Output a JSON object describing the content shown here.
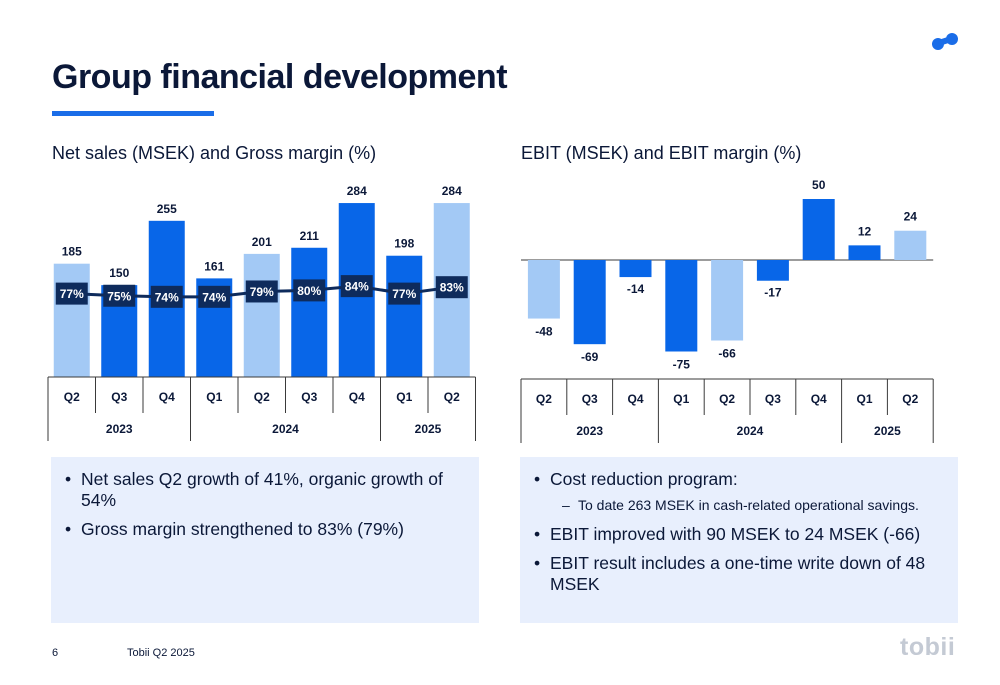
{
  "title": "Group financial development",
  "colors": {
    "navy": "#0b1838",
    "accent": "#1a6de8",
    "light_bar": "#a3c9f5",
    "dark_bar": "#0866e8",
    "margin_box": "#0e2b5c",
    "panel": "#e8effd",
    "brand_gray": "#c4cad4"
  },
  "logo_icon": "two-dots-icon",
  "chart_data": [
    {
      "type": "bar",
      "title": "Net sales (MSEK) and Gross margin (%)",
      "categories": [
        "Q2",
        "Q3",
        "Q4",
        "Q1",
        "Q2",
        "Q3",
        "Q4",
        "Q1",
        "Q2"
      ],
      "years": [
        {
          "label": "2023",
          "span": 3
        },
        {
          "label": "2024",
          "span": 4
        },
        {
          "label": "2025",
          "span": 2
        }
      ],
      "series": [
        {
          "values": [
            185,
            150,
            255,
            161,
            201,
            211,
            284,
            198,
            284
          ],
          "emphasis": [
            "light",
            "dark",
            "dark",
            "dark",
            "light",
            "dark",
            "dark",
            "dark",
            "light"
          ]
        },
        {
          "type": "line",
          "values": [
            77,
            75,
            74,
            74,
            79,
            80,
            84,
            77,
            83
          ],
          "labels": [
            "77%",
            "75%",
            "74%",
            "74%",
            "79%",
            "80%",
            "84%",
            "77%",
            "83%"
          ]
        }
      ],
      "value_labels": [
        "185",
        "150",
        "255",
        "161",
        "201",
        "211",
        "284",
        "198",
        "284"
      ],
      "ylim": [
        0,
        300
      ],
      "margin_ylim": [
        0,
        100
      ],
      "grid": false
    },
    {
      "type": "bar",
      "title": "EBIT (MSEK) and EBIT margin (%)",
      "categories": [
        "Q2",
        "Q3",
        "Q4",
        "Q1",
        "Q2",
        "Q3",
        "Q4",
        "Q1",
        "Q2"
      ],
      "years": [
        {
          "label": "2023",
          "span": 3
        },
        {
          "label": "2024",
          "span": 4
        },
        {
          "label": "2025",
          "span": 2
        }
      ],
      "series": [
        {
          "values": [
            -48,
            -69,
            -14,
            -75,
            -66,
            -17,
            50,
            12,
            24
          ],
          "emphasis": [
            "light",
            "dark",
            "dark",
            "dark",
            "light",
            "dark",
            "dark",
            "dark",
            "light"
          ]
        }
      ],
      "value_labels": [
        "-48",
        "-69",
        "-14",
        "-75",
        "-66",
        "-17",
        "50",
        "12",
        "24"
      ],
      "ylim": [
        -80,
        60
      ],
      "grid": false
    }
  ],
  "left_box": {
    "bullets": [
      "Net sales Q2 growth of 41%, organic growth of 54%",
      "Gross margin strengthened to 83% (79%)"
    ]
  },
  "right_box": {
    "bullet_1": "Cost reduction program:",
    "sub_1": "To date 263 MSEK  in cash-related operational savings.",
    "bullet_2": "EBIT improved with 90 MSEK to 24 MSEK (-66)",
    "bullet_3": "EBIT result includes a one-time write down of 48 MSEK"
  },
  "footer": {
    "page_number": "6",
    "text": "Tobii Q2 2025",
    "brand": "tobii"
  }
}
